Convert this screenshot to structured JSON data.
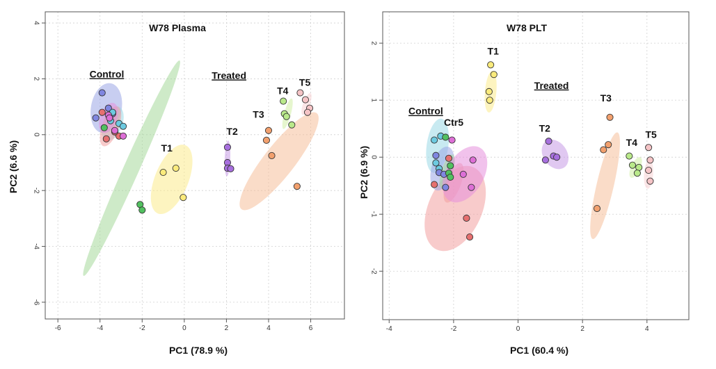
{
  "chart_data": [
    {
      "type": "scatter",
      "title": "W78 Plasma",
      "xlabel": "PC1 (78.9 %)",
      "ylabel": "PC2 (6.6 %)",
      "xlim": [
        -6.6,
        7.6
      ],
      "ylim": [
        -6.6,
        4.4
      ],
      "xticks": [
        -6,
        -4,
        -2,
        0,
        2,
        4,
        6
      ],
      "yticks": [
        -6,
        -4,
        -2,
        0,
        2,
        4
      ],
      "grid": true,
      "labels": [
        {
          "text": "Control",
          "x": -4.5,
          "y": 2.05,
          "underline": true
        },
        {
          "text": "Treated",
          "x": 1.3,
          "y": 2.0,
          "underline": true
        },
        {
          "text": "T1",
          "x": -1.1,
          "y": -0.6,
          "underline": false
        },
        {
          "text": "T2",
          "x": 2.0,
          "y": 0.0,
          "underline": false
        },
        {
          "text": "T3",
          "x": 3.25,
          "y": 0.6,
          "underline": false
        },
        {
          "text": "T4",
          "x": 4.4,
          "y": 1.45,
          "underline": false
        },
        {
          "text": "T5",
          "x": 5.45,
          "y": 1.75,
          "underline": false
        }
      ],
      "ellipses": [
        {
          "cx": -2.5,
          "cy": -1.2,
          "rx": 5.6,
          "ry": 0.28,
          "angle": -66,
          "color": "#a5d99a"
        },
        {
          "cx": -3.7,
          "cy": 0.95,
          "rx": 1.2,
          "ry": 0.55,
          "angle": -80,
          "color": "#9aa6e6"
        },
        {
          "cx": -3.4,
          "cy": 0.4,
          "rx": 0.85,
          "ry": 0.35,
          "angle": -70,
          "color": "#9ad8e6"
        },
        {
          "cx": -3.5,
          "cy": 0.3,
          "rx": 1.0,
          "ry": 0.3,
          "angle": -70,
          "color": "#f2a0a0"
        },
        {
          "cx": -3.6,
          "cy": 0.6,
          "rx": 0.75,
          "ry": 0.3,
          "angle": -70,
          "color": "#e690dc"
        },
        {
          "cx": -0.6,
          "cy": -1.6,
          "rx": 1.75,
          "ry": 0.6,
          "angle": -68,
          "color": "#fbeb8c"
        },
        {
          "cx": 2.05,
          "cy": -0.85,
          "rx": 0.85,
          "ry": 0.1,
          "angle": -88,
          "color": "#c69ae6"
        },
        {
          "cx": 4.5,
          "cy": -0.95,
          "rx": 2.9,
          "ry": 0.55,
          "angle": -52,
          "color": "#f6bf9a"
        },
        {
          "cx": 4.9,
          "cy": 0.75,
          "rx": 0.75,
          "ry": 0.12,
          "angle": -75,
          "color": "#d2eea6"
        },
        {
          "cx": 5.8,
          "cy": 1.1,
          "rx": 0.55,
          "ry": 0.12,
          "angle": -70,
          "color": "#f8d2d4"
        }
      ],
      "series": [
        {
          "fill": "#52c060",
          "points": [
            [
              -3.8,
              0.25
            ],
            [
              -3.5,
              0.7
            ],
            [
              -2.1,
              -2.5
            ],
            [
              -2.0,
              -2.7
            ]
          ]
        },
        {
          "fill": "#7f86e0",
          "points": [
            [
              -4.2,
              0.6
            ],
            [
              -3.9,
              1.5
            ],
            [
              -3.4,
              0.75
            ],
            [
              -3.6,
              0.95
            ]
          ]
        },
        {
          "fill": "#6ccae0",
          "points": [
            [
              -3.4,
              0.8
            ],
            [
              -3.1,
              0.4
            ],
            [
              -2.9,
              0.3
            ],
            [
              -3.5,
              0.5
            ]
          ]
        },
        {
          "fill": "#e67070",
          "points": [
            [
              -3.7,
              -0.15
            ],
            [
              -3.1,
              -0.05
            ],
            [
              -3.9,
              0.8
            ],
            [
              -3.3,
              0.1
            ]
          ]
        },
        {
          "fill": "#dd6fd6",
          "points": [
            [
              -3.6,
              0.7
            ],
            [
              -3.3,
              0.15
            ],
            [
              -2.9,
              -0.05
            ],
            [
              -3.55,
              0.6
            ]
          ]
        },
        {
          "fill": "#fbeb7c",
          "points": [
            [
              -1.0,
              -1.35
            ],
            [
              -0.4,
              -1.2
            ],
            [
              -0.05,
              -2.25
            ]
          ]
        },
        {
          "fill": "#a76fde",
          "points": [
            [
              2.05,
              -0.45
            ],
            [
              2.05,
              -1.0
            ],
            [
              2.05,
              -1.2
            ],
            [
              2.2,
              -1.22
            ]
          ]
        },
        {
          "fill": "#f2a06e",
          "points": [
            [
              4.0,
              0.15
            ],
            [
              3.9,
              -0.2
            ],
            [
              4.15,
              -0.75
            ],
            [
              5.35,
              -1.85
            ]
          ]
        },
        {
          "fill": "#b9e98a",
          "points": [
            [
              4.7,
              1.2
            ],
            [
              4.75,
              0.75
            ],
            [
              4.85,
              0.65
            ],
            [
              5.1,
              0.35
            ]
          ]
        },
        {
          "fill": "#f5c4c6",
          "points": [
            [
              5.5,
              1.5
            ],
            [
              5.75,
              1.25
            ],
            [
              5.95,
              0.95
            ],
            [
              5.85,
              0.8
            ]
          ]
        }
      ]
    },
    {
      "type": "scatter",
      "title": "W78 PLT",
      "xlabel": "PC1 (60.4 %)",
      "ylabel": "PC2 (6.9 %)",
      "xlim": [
        -4.2,
        5.3
      ],
      "ylim": [
        -2.85,
        2.55
      ],
      "xticks": [
        -4,
        -2,
        0,
        2,
        4
      ],
      "yticks": [
        -2,
        -1,
        0,
        1,
        2
      ],
      "grid": true,
      "labels": [
        {
          "text": "Control",
          "x": -3.4,
          "y": 0.75,
          "underline": true
        },
        {
          "text": "Ctr5",
          "x": -2.3,
          "y": 0.55,
          "underline": false
        },
        {
          "text": "Treated",
          "x": 0.5,
          "y": 1.2,
          "underline": true
        },
        {
          "text": "T1",
          "x": -0.95,
          "y": 1.8,
          "underline": false
        },
        {
          "text": "T2",
          "x": 0.65,
          "y": 0.45,
          "underline": false
        },
        {
          "text": "T3",
          "x": 2.55,
          "y": 0.98,
          "underline": false
        },
        {
          "text": "T4",
          "x": 3.35,
          "y": 0.2,
          "underline": false
        },
        {
          "text": "T5",
          "x": 3.95,
          "y": 0.34,
          "underline": false
        }
      ],
      "ellipses": [
        {
          "cx": -1.95,
          "cy": -0.9,
          "rx": 1.4,
          "ry": 0.47,
          "angle": -66,
          "color": "#f2a0a0"
        },
        {
          "cx": -2.5,
          "cy": 0.2,
          "rx": 0.85,
          "ry": 0.19,
          "angle": -82,
          "color": "#9ad8e6"
        },
        {
          "cx": -2.35,
          "cy": -0.2,
          "rx": 0.7,
          "ry": 0.19,
          "angle": -75,
          "color": "#9aa6e6"
        },
        {
          "cx": -2.2,
          "cy": -0.25,
          "rx": 0.55,
          "ry": 0.1,
          "angle": -72,
          "color": "#a5d99a"
        },
        {
          "cx": -2.0,
          "cy": -0.45,
          "rx": 0.65,
          "ry": 0.13,
          "angle": -70,
          "color": "#f2a0a0"
        },
        {
          "cx": -1.65,
          "cy": -0.3,
          "rx": 0.95,
          "ry": 0.33,
          "angle": -60,
          "color": "#e690dc"
        },
        {
          "cx": -0.85,
          "cy": 1.15,
          "rx": 0.65,
          "ry": 0.1,
          "angle": -85,
          "color": "#fbeb8c"
        },
        {
          "cx": 1.15,
          "cy": 0.05,
          "rx": 0.37,
          "ry": 0.28,
          "angle": -35,
          "color": "#c69ae6"
        },
        {
          "cx": 2.7,
          "cy": -0.5,
          "rx": 1.7,
          "ry": 0.15,
          "angle": -77,
          "color": "#f6bf9a"
        },
        {
          "cx": 3.65,
          "cy": -0.18,
          "rx": 0.35,
          "ry": 0.08,
          "angle": -65,
          "color": "#d2eea6"
        },
        {
          "cx": 4.05,
          "cy": -0.3,
          "rx": 0.45,
          "ry": 0.08,
          "angle": -86,
          "color": "#f8d2d4"
        }
      ],
      "series": [
        {
          "fill": "#6ccae0",
          "points": [
            [
              -2.6,
              0.3
            ],
            [
              -2.4,
              0.37
            ],
            [
              -2.55,
              -0.1
            ],
            [
              -2.45,
              -0.2
            ]
          ]
        },
        {
          "fill": "#7f86e0",
          "points": [
            [
              -2.55,
              0.03
            ],
            [
              -2.45,
              -0.27
            ],
            [
              -2.3,
              -0.3
            ],
            [
              -2.25,
              -0.53
            ]
          ]
        },
        {
          "fill": "#52c060",
          "points": [
            [
              -2.25,
              0.35
            ],
            [
              -2.1,
              -0.15
            ],
            [
              -2.15,
              -0.28
            ],
            [
              -2.1,
              -0.35
            ]
          ]
        },
        {
          "fill": "#e67070",
          "points": [
            [
              -2.6,
              -0.48
            ],
            [
              -2.15,
              -0.02
            ],
            [
              -1.6,
              -1.07
            ],
            [
              -1.5,
              -1.4
            ]
          ]
        },
        {
          "fill": "#dd6fd6",
          "points": [
            [
              -2.05,
              0.3
            ],
            [
              -1.7,
              -0.3
            ],
            [
              -1.4,
              -0.05
            ],
            [
              -1.45,
              -0.53
            ]
          ]
        },
        {
          "fill": "#fbeb7c",
          "points": [
            [
              -0.85,
              1.62
            ],
            [
              -0.75,
              1.45
            ],
            [
              -0.9,
              1.15
            ],
            [
              -0.88,
              1.0
            ]
          ]
        },
        {
          "fill": "#a76fde",
          "points": [
            [
              0.85,
              -0.05
            ],
            [
              0.95,
              0.28
            ],
            [
              1.1,
              0.02
            ],
            [
              1.2,
              0.0
            ]
          ]
        },
        {
          "fill": "#f2a06e",
          "points": [
            [
              2.85,
              0.7
            ],
            [
              2.8,
              0.22
            ],
            [
              2.65,
              0.13
            ],
            [
              2.45,
              -0.9
            ]
          ]
        },
        {
          "fill": "#b9e98a",
          "points": [
            [
              3.45,
              0.02
            ],
            [
              3.55,
              -0.14
            ],
            [
              3.75,
              -0.18
            ],
            [
              3.7,
              -0.28
            ]
          ]
        },
        {
          "fill": "#f5c4c6",
          "points": [
            [
              4.05,
              0.17
            ],
            [
              4.1,
              -0.05
            ],
            [
              4.05,
              -0.23
            ],
            [
              4.1,
              -0.42
            ]
          ]
        }
      ]
    }
  ]
}
